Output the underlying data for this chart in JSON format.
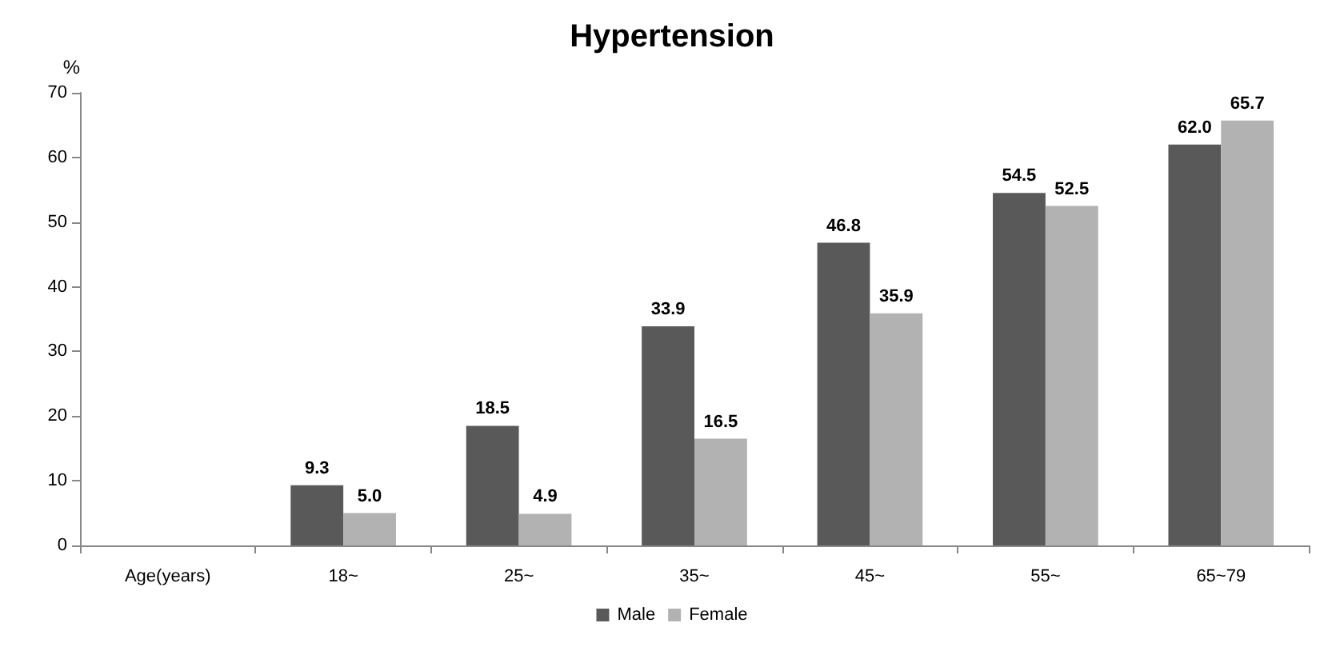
{
  "chart_data": {
    "type": "bar",
    "title": "Hypertension",
    "ylabel": "%",
    "categories": [
      "Age(years)",
      "18~",
      "25~",
      "35~",
      "45~",
      "55~",
      "65~79"
    ],
    "series": [
      {
        "name": "Male",
        "color": "#595959",
        "values": [
          null,
          9.3,
          18.5,
          33.9,
          46.8,
          54.5,
          62.0
        ],
        "value_labels": [
          null,
          "9.3",
          "18.5",
          "33.9",
          "46.8",
          "54.5",
          "62.0"
        ]
      },
      {
        "name": "Female",
        "color": "#b2b2b2",
        "values": [
          null,
          5.0,
          4.9,
          16.5,
          35.9,
          52.5,
          65.7
        ],
        "value_labels": [
          null,
          "5.0",
          "4.9",
          "16.5",
          "35.9",
          "52.5",
          "65.7"
        ]
      }
    ],
    "ylim": [
      0,
      70
    ],
    "yticks": [
      0,
      10,
      20,
      30,
      40,
      50,
      60,
      70
    ],
    "grid": false,
    "legend": "bottom"
  }
}
